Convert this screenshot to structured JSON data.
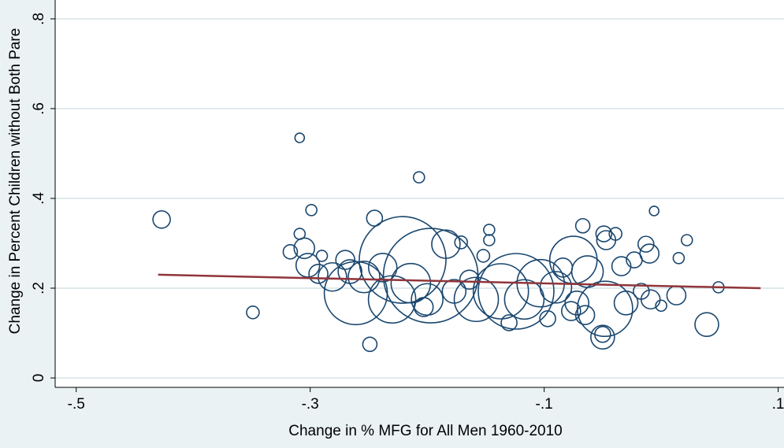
{
  "chart_data": {
    "type": "scatter",
    "x_label": "Change in % MFG for All Men 1960-2010",
    "y_label": "Change in Percent Children without Both Pare",
    "xlim": [
      -0.518,
      0.105
    ],
    "ylim": [
      -0.021,
      0.842
    ],
    "xticks": [
      {
        "value": -0.5,
        "label": "-.5"
      },
      {
        "value": -0.3,
        "label": "-.3"
      },
      {
        "value": -0.1,
        "label": "-.1"
      },
      {
        "value": 0.1,
        "label": ".1"
      }
    ],
    "yticks": [
      0,
      {
        "value": 0.2,
        "label": ".2"
      },
      {
        "value": 0.4,
        "label": ".4"
      },
      {
        "value": 0.6,
        "label": ".6"
      },
      {
        "value": 0.8,
        "label": ".8"
      }
    ],
    "grid": true,
    "series": [
      {
        "color": "#1a476f",
        "x": [
          -0.427,
          -0.349,
          -0.309,
          -0.299,
          -0.309,
          -0.317,
          -0.305,
          -0.302,
          -0.29,
          -0.293,
          -0.281,
          -0.27,
          -0.266,
          -0.254,
          -0.245,
          -0.249,
          -0.261,
          -0.238,
          -0.221,
          -0.23,
          -0.214,
          -0.207,
          -0.2,
          -0.197,
          -0.203,
          -0.184,
          -0.177,
          -0.171,
          -0.164,
          -0.158,
          -0.147,
          -0.147,
          -0.152,
          -0.137,
          -0.124,
          -0.13,
          -0.117,
          -0.103,
          -0.097,
          -0.09,
          -0.084,
          -0.075,
          -0.067,
          -0.072,
          -0.063,
          -0.077,
          -0.065,
          -0.048,
          -0.05,
          -0.05,
          -0.047,
          -0.049,
          -0.039,
          -0.034,
          -0.03,
          -0.023,
          -0.017,
          -0.006,
          -0.013,
          -0.01,
          0,
          -0.009,
          0.013,
          0.015,
          0.022,
          0.039,
          0.049
        ],
        "values": [
          0.353,
          0.146,
          0.535,
          0.374,
          0.321,
          0.281,
          0.289,
          0.251,
          0.272,
          0.232,
          0.225,
          0.263,
          0.237,
          0.225,
          0.356,
          0.075,
          0.189,
          0.246,
          0.263,
          0.175,
          0.211,
          0.447,
          0.175,
          0.228,
          0.158,
          0.298,
          0.193,
          0.302,
          0.219,
          0.175,
          0.33,
          0.307,
          0.272,
          0.193,
          0.193,
          0.123,
          0.175,
          0.211,
          0.132,
          0.202,
          0.246,
          0.263,
          0.339,
          0.167,
          0.237,
          0.149,
          0.14,
          0.154,
          0.091,
          0.097,
          0.307,
          0.321,
          0.321,
          0.249,
          0.167,
          0.263,
          0.193,
          0.372,
          0.298,
          0.277,
          0.161,
          0.175,
          0.184,
          0.267,
          0.307,
          0.119,
          0.202
        ],
        "sizes": [
          11,
          8,
          6,
          7,
          7,
          9,
          13,
          15,
          7,
          12,
          18,
          12,
          15,
          20,
          10,
          9,
          40,
          18,
          55,
          30,
          25,
          7,
          20,
          60,
          12,
          18,
          15,
          8,
          12,
          28,
          7,
          7,
          8,
          35,
          48,
          10,
          25,
          30,
          10,
          20,
          12,
          30,
          9,
          15,
          20,
          12,
          12,
          35,
          15,
          10,
          12,
          10,
          8,
          12,
          15,
          10,
          10,
          6,
          10,
          12,
          7,
          12,
          12,
          7,
          7,
          15,
          7
        ]
      }
    ],
    "fit_line": {
      "color": "#90353b",
      "x": [
        -0.43,
        0.085
      ],
      "values": [
        0.23,
        0.2
      ]
    }
  }
}
